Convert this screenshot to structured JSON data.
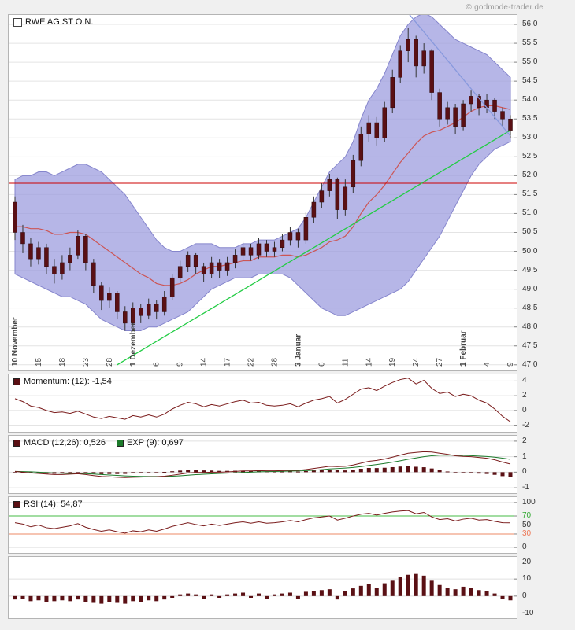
{
  "copyright": "© godmode-trader.de",
  "chart_data": [
    {
      "type": "candlestick",
      "title": "RWE AG ST O.N.",
      "legend": "RWE AG ST O.N.",
      "ylim": [
        47.0,
        56.0
      ],
      "y_tick_step": 0.5,
      "x_tick_every": 3,
      "x_tick_labels": [
        "10 November",
        "15",
        "18",
        "23",
        "28",
        "1 Dezember",
        "6",
        "9",
        "14",
        "17",
        "22",
        "28",
        "3 Januar",
        "6",
        "11",
        "14",
        "19",
        "24",
        "27",
        "1 Februar",
        "4",
        "9"
      ],
      "y_ticks": [
        {
          "v": 56.0,
          "label": "56,0"
        },
        {
          "v": 55.5,
          "label": "55,5"
        },
        {
          "v": 55.0,
          "label": "55,0"
        },
        {
          "v": 54.5,
          "label": "54,5"
        },
        {
          "v": 54.0,
          "label": "54,0"
        },
        {
          "v": 53.5,
          "label": "53,5"
        },
        {
          "v": 53.0,
          "label": "53,0"
        },
        {
          "v": 52.5,
          "label": "52,5"
        },
        {
          "v": 52.0,
          "label": "52,0"
        },
        {
          "v": 51.5,
          "label": "51,5"
        },
        {
          "v": 51.0,
          "label": "51,0"
        },
        {
          "v": 50.5,
          "label": "50,5"
        },
        {
          "v": 50.0,
          "label": "50,0"
        },
        {
          "v": 49.5,
          "label": "49,5"
        },
        {
          "v": 49.0,
          "label": "49,0"
        },
        {
          "v": 48.5,
          "label": "48,5"
        },
        {
          "v": 48.0,
          "label": "48,0"
        },
        {
          "v": 47.5,
          "label": "47,5"
        },
        {
          "v": 47.0,
          "label": "47,0"
        }
      ],
      "candles_ohlc": [
        [
          51.3,
          51.45,
          50.3,
          50.5
        ],
        [
          50.5,
          50.7,
          49.95,
          50.2
        ],
        [
          50.2,
          50.35,
          49.6,
          49.8
        ],
        [
          49.8,
          50.25,
          49.65,
          50.1
        ],
        [
          50.1,
          50.2,
          49.4,
          49.6
        ],
        [
          49.6,
          49.8,
          49.15,
          49.4
        ],
        [
          49.4,
          49.9,
          49.25,
          49.7
        ],
        [
          49.7,
          50.1,
          49.5,
          49.9
        ],
        [
          49.9,
          50.55,
          49.8,
          50.4
        ],
        [
          50.4,
          50.45,
          49.5,
          49.7
        ],
        [
          49.7,
          49.8,
          48.9,
          49.1
        ],
        [
          49.1,
          49.2,
          48.45,
          48.7
        ],
        [
          48.7,
          49.05,
          48.5,
          48.9
        ],
        [
          48.9,
          48.95,
          48.2,
          48.4
        ],
        [
          48.4,
          48.55,
          47.9,
          48.1
        ],
        [
          48.1,
          48.65,
          48.0,
          48.5
        ],
        [
          48.5,
          48.6,
          48.1,
          48.3
        ],
        [
          48.3,
          48.75,
          48.2,
          48.6
        ],
        [
          48.6,
          48.7,
          48.2,
          48.4
        ],
        [
          48.4,
          48.95,
          48.3,
          48.8
        ],
        [
          48.8,
          49.4,
          48.7,
          49.3
        ],
        [
          49.3,
          49.75,
          49.2,
          49.6
        ],
        [
          49.6,
          50.0,
          49.45,
          49.9
        ],
        [
          49.9,
          49.95,
          49.4,
          49.6
        ],
        [
          49.6,
          49.7,
          49.2,
          49.4
        ],
        [
          49.4,
          49.85,
          49.3,
          49.7
        ],
        [
          49.7,
          49.8,
          49.3,
          49.5
        ],
        [
          49.5,
          49.85,
          49.35,
          49.7
        ],
        [
          49.7,
          50.05,
          49.55,
          49.9
        ],
        [
          49.9,
          50.25,
          49.75,
          50.1
        ],
        [
          50.1,
          50.2,
          49.75,
          49.9
        ],
        [
          49.9,
          50.35,
          49.8,
          50.2
        ],
        [
          50.2,
          50.3,
          49.85,
          50.0
        ],
        [
          50.0,
          50.25,
          49.85,
          50.1
        ],
        [
          50.1,
          50.45,
          50.0,
          50.3
        ],
        [
          50.3,
          50.65,
          50.15,
          50.5
        ],
        [
          50.5,
          50.6,
          50.1,
          50.3
        ],
        [
          50.3,
          51.05,
          50.2,
          50.9
        ],
        [
          50.9,
          51.45,
          50.75,
          51.3
        ],
        [
          51.3,
          51.8,
          51.15,
          51.6
        ],
        [
          51.6,
          52.05,
          51.45,
          51.9
        ],
        [
          51.9,
          51.95,
          50.85,
          51.1
        ],
        [
          51.1,
          51.9,
          50.95,
          51.7
        ],
        [
          51.7,
          52.55,
          51.55,
          52.4
        ],
        [
          52.4,
          53.3,
          52.25,
          53.1
        ],
        [
          53.1,
          53.6,
          52.9,
          53.4
        ],
        [
          53.4,
          53.55,
          52.8,
          53.0
        ],
        [
          53.0,
          53.95,
          52.9,
          53.8
        ],
        [
          53.8,
          54.8,
          53.65,
          54.6
        ],
        [
          54.6,
          55.45,
          54.45,
          55.3
        ],
        [
          55.3,
          55.9,
          55.0,
          55.6
        ],
        [
          55.6,
          55.7,
          54.6,
          54.9
        ],
        [
          54.9,
          55.5,
          54.7,
          55.3
        ],
        [
          55.3,
          55.35,
          54.0,
          54.2
        ],
        [
          54.2,
          54.3,
          53.3,
          53.5
        ],
        [
          53.5,
          53.95,
          53.35,
          53.8
        ],
        [
          53.8,
          53.9,
          53.1,
          53.3
        ],
        [
          53.3,
          54.0,
          53.2,
          53.9
        ],
        [
          53.9,
          54.25,
          53.7,
          54.1
        ],
        [
          54.1,
          54.15,
          53.6,
          53.8
        ],
        [
          53.8,
          54.15,
          53.65,
          54.0
        ],
        [
          54.0,
          54.05,
          53.5,
          53.7
        ],
        [
          53.7,
          53.8,
          53.3,
          53.5
        ],
        [
          53.5,
          53.6,
          53.0,
          53.2
        ]
      ],
      "bollinger_upper": [
        51.9,
        52.0,
        52.0,
        52.1,
        52.1,
        52.0,
        52.1,
        52.2,
        52.3,
        52.3,
        52.2,
        52.1,
        51.9,
        51.7,
        51.5,
        51.2,
        50.9,
        50.6,
        50.3,
        50.1,
        50.0,
        50.0,
        50.1,
        50.2,
        50.2,
        50.2,
        50.1,
        50.1,
        50.1,
        50.2,
        50.2,
        50.3,
        50.3,
        50.3,
        50.4,
        50.5,
        50.6,
        50.9,
        51.3,
        51.7,
        52.1,
        52.3,
        52.5,
        52.9,
        53.5,
        54.0,
        54.3,
        54.7,
        55.2,
        55.7,
        56.0,
        56.2,
        56.3,
        56.2,
        56.0,
        55.8,
        55.6,
        55.5,
        55.4,
        55.3,
        55.2,
        55.0,
        54.8,
        54.6
      ],
      "bollinger_lower": [
        49.4,
        49.3,
        49.2,
        49.1,
        49.0,
        48.9,
        48.8,
        48.8,
        48.7,
        48.6,
        48.4,
        48.2,
        48.1,
        48.0,
        47.9,
        47.9,
        47.9,
        48.0,
        48.0,
        48.1,
        48.2,
        48.3,
        48.4,
        48.6,
        48.8,
        49.0,
        49.1,
        49.2,
        49.3,
        49.3,
        49.3,
        49.4,
        49.4,
        49.4,
        49.4,
        49.3,
        49.1,
        48.9,
        48.7,
        48.5,
        48.4,
        48.3,
        48.3,
        48.4,
        48.5,
        48.6,
        48.7,
        48.8,
        48.9,
        49.0,
        49.2,
        49.5,
        49.8,
        50.1,
        50.4,
        50.8,
        51.2,
        51.6,
        52.0,
        52.3,
        52.5,
        52.7,
        52.8,
        52.9
      ],
      "overlays": {
        "horizontal_line": {
          "value": 51.8,
          "color": "#cc0000"
        },
        "uptrend_line": {
          "from": [
            13,
            47.0
          ],
          "to": [
            63,
            53.2
          ],
          "color": "#22cc44"
        },
        "downtrend_line": {
          "from": [
            50,
            56.3
          ],
          "to": [
            63,
            53.05
          ],
          "color": "#8899dd"
        }
      },
      "colors": {
        "band_fill": "#9a9ade",
        "band_edge": "#8585cc",
        "sma": "#cc5555",
        "wick": "#333333",
        "body": "#5a1014",
        "body_edge": "#2f0a0c",
        "grid": "#e4e4e4"
      }
    },
    {
      "type": "line",
      "name": "Momentum",
      "legend": "Momentum: (12): -1,54",
      "ylim": [
        -2,
        4
      ],
      "y_ticks": [
        {
          "v": 4,
          "label": "4"
        },
        {
          "v": 2,
          "label": "2"
        },
        {
          "v": 0,
          "label": "0"
        },
        {
          "v": -2,
          "label": "-2"
        }
      ],
      "values": [
        1.6,
        1.2,
        0.6,
        0.4,
        0.0,
        -0.3,
        -0.2,
        -0.4,
        -0.1,
        -0.5,
        -0.9,
        -1.1,
        -0.8,
        -1.0,
        -1.2,
        -0.7,
        -0.9,
        -0.6,
        -0.9,
        -0.5,
        0.2,
        0.7,
        1.1,
        0.9,
        0.5,
        0.8,
        0.6,
        0.9,
        1.2,
        1.4,
        1.0,
        1.1,
        0.7,
        0.6,
        0.7,
        0.9,
        0.5,
        1.0,
        1.4,
        1.6,
        1.9,
        1.0,
        1.5,
        2.2,
        2.9,
        3.1,
        2.7,
        3.3,
        3.8,
        4.2,
        4.4,
        3.6,
        4.1,
        3.0,
        2.3,
        2.5,
        1.9,
        2.2,
        2.0,
        1.4,
        1.0,
        0.2,
        -0.8,
        -1.54
      ],
      "colors": {
        "line": "#7a1b1b",
        "grid": "#e0e0e0"
      }
    },
    {
      "type": "line+histogram",
      "name": "MACD",
      "legend_macd": "MACD (12,26): 0,526",
      "legend_signal": "EXP (9): 0,697",
      "ylim": [
        -1,
        2
      ],
      "y_ticks": [
        {
          "v": 2,
          "label": "2"
        },
        {
          "v": 1,
          "label": "1"
        },
        {
          "v": 0,
          "label": "0"
        },
        {
          "v": -1,
          "label": "-1"
        }
      ],
      "macd": [
        0.05,
        0.0,
        -0.05,
        -0.08,
        -0.12,
        -0.15,
        -0.15,
        -0.13,
        -0.1,
        -0.15,
        -0.22,
        -0.28,
        -0.3,
        -0.33,
        -0.35,
        -0.33,
        -0.32,
        -0.3,
        -0.29,
        -0.26,
        -0.2,
        -0.13,
        -0.05,
        -0.02,
        -0.02,
        0.0,
        0.0,
        0.02,
        0.05,
        0.08,
        0.08,
        0.1,
        0.09,
        0.09,
        0.1,
        0.12,
        0.12,
        0.17,
        0.24,
        0.31,
        0.38,
        0.36,
        0.38,
        0.46,
        0.58,
        0.7,
        0.76,
        0.85,
        0.97,
        1.1,
        1.22,
        1.27,
        1.32,
        1.3,
        1.22,
        1.15,
        1.06,
        1.02,
        1.0,
        0.95,
        0.9,
        0.8,
        0.65,
        0.526
      ],
      "signal_ema_period": 9,
      "colors": {
        "macd_line": "#7a1b1b",
        "signal_line": "#1b7a2a",
        "hist": "#5a1014",
        "grid": "#e0e0e0"
      }
    },
    {
      "type": "line",
      "name": "RSI",
      "legend": "RSI (14): 54,87",
      "ylim": [
        0,
        100
      ],
      "levels": {
        "upper": {
          "value": 70,
          "color": "#44bb44"
        },
        "lower": {
          "value": 30,
          "color": "#ee8866"
        }
      },
      "y_ticks": [
        {
          "v": 100,
          "label": "100"
        },
        {
          "v": 70,
          "label": "70",
          "color": "#33aa33"
        },
        {
          "v": 50,
          "label": "50"
        },
        {
          "v": 30,
          "label": "30",
          "color": "#ee7755"
        },
        {
          "v": 0,
          "label": "0"
        }
      ],
      "values": [
        55,
        52,
        46,
        50,
        44,
        42,
        45,
        48,
        53,
        45,
        40,
        36,
        39,
        35,
        32,
        37,
        35,
        39,
        36,
        41,
        47,
        51,
        55,
        51,
        48,
        52,
        49,
        52,
        55,
        57,
        54,
        57,
        54,
        55,
        57,
        60,
        57,
        62,
        66,
        68,
        70,
        61,
        65,
        70,
        74,
        76,
        72,
        76,
        79,
        81,
        82,
        75,
        78,
        68,
        62,
        64,
        59,
        63,
        65,
        61,
        62,
        58,
        55,
        54.87
      ],
      "colors": {
        "line": "#7a1b1b",
        "grid": "#e0e0e0"
      }
    },
    {
      "type": "histogram",
      "name": "lower-histogram",
      "ylim": [
        -10,
        20
      ],
      "y_ticks": [
        {
          "v": 20,
          "label": "20"
        },
        {
          "v": 10,
          "label": "10"
        },
        {
          "v": 0,
          "label": "0"
        },
        {
          "v": -10,
          "label": "-10"
        }
      ],
      "values": [
        -2,
        -1.5,
        -3,
        -2.5,
        -3.5,
        -3,
        -2.5,
        -3,
        -2,
        -3.5,
        -4,
        -4.5,
        -3.5,
        -4,
        -4.5,
        -3,
        -3.5,
        -2.5,
        -3,
        -2,
        -1,
        1,
        1.5,
        1,
        -1.5,
        1,
        -1,
        1,
        1.5,
        2,
        -1,
        1.5,
        -1.5,
        1,
        1.5,
        2,
        -1.5,
        2.5,
        3,
        3.5,
        4,
        -2,
        3,
        4.5,
        6,
        7,
        5,
        7.5,
        9,
        11,
        12.5,
        13,
        12,
        9,
        6.5,
        5,
        4,
        5.5,
        5,
        3.5,
        3,
        1.5,
        -1.5,
        -2.5
      ],
      "colors": {
        "bar": "#5a1014",
        "grid": "#e0e0e0"
      }
    }
  ]
}
